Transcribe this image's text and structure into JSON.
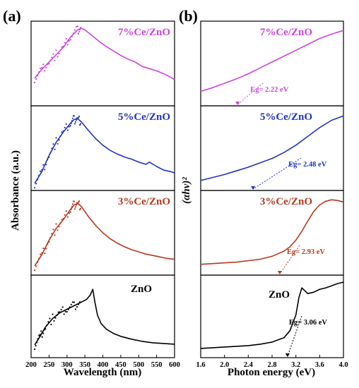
{
  "figure": {
    "panel_a_label": "(a)",
    "panel_b_label": "(b)"
  },
  "chart_data": [
    {
      "type": "line",
      "panel": "(a)",
      "xlabel": "Wavelength (nm)",
      "ylabel": "Absorbance (a.u.)",
      "xlim": [
        200,
        600
      ],
      "xticks": [
        "200",
        "250",
        "300",
        "350",
        "400",
        "450",
        "500",
        "550",
        "600"
      ],
      "stacked_panels": [
        {
          "label": "7%Ce/ZnO",
          "color": "#cc44dd",
          "x": [
            210,
            230,
            250,
            270,
            290,
            310,
            330,
            340,
            350,
            370,
            390,
            410,
            430,
            450,
            470,
            490,
            510,
            530,
            550,
            570,
            590,
            600
          ],
          "y": [
            0.3,
            0.42,
            0.52,
            0.62,
            0.72,
            0.86,
            0.96,
            0.98,
            0.96,
            0.88,
            0.8,
            0.73,
            0.67,
            0.61,
            0.56,
            0.52,
            0.46,
            0.43,
            0.4,
            0.36,
            0.31,
            0.28
          ]
        },
        {
          "label": "5%Ce/ZnO",
          "color": "#2233bb",
          "x": [
            210,
            230,
            250,
            270,
            290,
            310,
            320,
            330,
            340,
            360,
            380,
            400,
            420,
            440,
            460,
            480,
            500,
            520,
            530,
            550,
            570,
            590,
            600
          ],
          "y": [
            0.02,
            0.18,
            0.4,
            0.58,
            0.72,
            0.84,
            0.89,
            0.9,
            0.86,
            0.74,
            0.63,
            0.54,
            0.47,
            0.42,
            0.38,
            0.35,
            0.31,
            0.28,
            0.31,
            0.25,
            0.2,
            0.18,
            0.16
          ]
        },
        {
          "label": "3%Ce/ZnO",
          "color": "#b23a20",
          "x": [
            210,
            230,
            250,
            270,
            290,
            310,
            320,
            330,
            340,
            360,
            380,
            400,
            420,
            440,
            460,
            480,
            500,
            520,
            540,
            560,
            580,
            600
          ],
          "y": [
            0.05,
            0.2,
            0.4,
            0.56,
            0.68,
            0.82,
            0.88,
            0.9,
            0.86,
            0.72,
            0.6,
            0.5,
            0.42,
            0.36,
            0.31,
            0.27,
            0.24,
            0.21,
            0.19,
            0.17,
            0.15,
            0.14
          ]
        },
        {
          "label": "ZnO",
          "color": "#000000",
          "x": [
            210,
            225,
            240,
            260,
            280,
            300,
            320,
            340,
            355,
            365,
            372,
            378,
            385,
            395,
            410,
            430,
            450,
            480,
            510,
            540,
            570,
            600
          ],
          "y": [
            0.1,
            0.22,
            0.35,
            0.47,
            0.55,
            0.6,
            0.65,
            0.7,
            0.74,
            0.8,
            0.88,
            0.7,
            0.52,
            0.4,
            0.32,
            0.26,
            0.22,
            0.18,
            0.15,
            0.13,
            0.12,
            0.11
          ]
        }
      ]
    },
    {
      "type": "line",
      "panel": "(b)",
      "xlabel": "Photon energy (eV)",
      "ylabel": "(αhν)²",
      "xlim": [
        1.6,
        4.0
      ],
      "xticks": [
        "1.6",
        "2.0",
        "2.4",
        "2.8",
        "3.2",
        "3.6",
        "4.0"
      ],
      "stacked_panels": [
        {
          "label": "7%Ce/ZnO",
          "color": "#cc44dd",
          "eg_text": "Eg= 2.22 eV",
          "eg_value": 2.22,
          "x": [
            1.6,
            1.8,
            2.0,
            2.2,
            2.4,
            2.6,
            2.8,
            3.0,
            3.2,
            3.4,
            3.6,
            3.8,
            4.0
          ],
          "y": [
            0.12,
            0.17,
            0.23,
            0.29,
            0.36,
            0.44,
            0.52,
            0.6,
            0.68,
            0.76,
            0.84,
            0.9,
            0.95
          ]
        },
        {
          "label": "5%Ce/ZnO",
          "color": "#2233bb",
          "eg_text": "Eg= 2.48 eV",
          "eg_value": 2.48,
          "x": [
            1.6,
            1.8,
            2.0,
            2.2,
            2.4,
            2.6,
            2.8,
            3.0,
            3.2,
            3.4,
            3.6,
            3.8,
            4.0
          ],
          "y": [
            0.06,
            0.1,
            0.14,
            0.19,
            0.24,
            0.3,
            0.36,
            0.44,
            0.54,
            0.66,
            0.78,
            0.88,
            0.94
          ]
        },
        {
          "label": "3%Ce/ZnO",
          "color": "#b23a20",
          "eg_text": "Eg= 2.93 eV",
          "eg_value": 2.93,
          "x": [
            1.6,
            1.8,
            2.0,
            2.2,
            2.4,
            2.6,
            2.8,
            3.0,
            3.1,
            3.2,
            3.3,
            3.4,
            3.5,
            3.6,
            3.7,
            3.8,
            3.9,
            4.0
          ],
          "y": [
            0.07,
            0.08,
            0.09,
            0.1,
            0.12,
            0.14,
            0.18,
            0.25,
            0.31,
            0.4,
            0.52,
            0.66,
            0.79,
            0.88,
            0.93,
            0.95,
            0.94,
            0.92
          ]
        },
        {
          "label": "ZnO",
          "color": "#000000",
          "eg_text": "Eg= 3.06 eV",
          "eg_value": 3.06,
          "x": [
            1.6,
            1.8,
            2.0,
            2.2,
            2.4,
            2.6,
            2.8,
            3.0,
            3.1,
            3.2,
            3.25,
            3.3,
            3.35,
            3.4,
            3.5,
            3.6,
            3.7,
            3.8,
            3.9,
            4.0
          ],
          "y": [
            0.05,
            0.06,
            0.07,
            0.08,
            0.09,
            0.11,
            0.14,
            0.2,
            0.3,
            0.52,
            0.76,
            0.9,
            0.86,
            0.82,
            0.84,
            0.88,
            0.9,
            0.93,
            0.96,
            0.98
          ]
        }
      ]
    }
  ]
}
